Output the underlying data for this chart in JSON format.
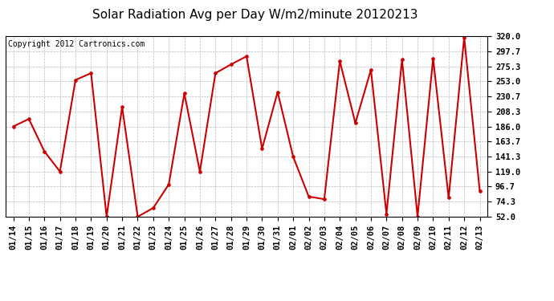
{
  "title": "Solar Radiation Avg per Day W/m2/minute 20120213",
  "copyright": "Copyright 2012 Cartronics.com",
  "dates": [
    "01/14",
    "01/15",
    "01/16",
    "01/17",
    "01/18",
    "01/19",
    "01/20",
    "01/21",
    "01/22",
    "01/23",
    "01/24",
    "01/25",
    "01/26",
    "01/27",
    "01/28",
    "01/29",
    "01/30",
    "01/31",
    "02/01",
    "02/02",
    "02/03",
    "02/04",
    "02/05",
    "02/06",
    "02/07",
    "02/08",
    "02/09",
    "02/10",
    "02/11",
    "02/12",
    "02/13"
  ],
  "values": [
    186,
    197,
    149,
    119,
    255,
    265,
    52,
    215,
    52,
    65,
    100,
    235,
    119,
    265,
    278,
    290,
    153,
    237,
    141,
    82,
    78,
    283,
    191,
    270,
    56,
    285,
    52,
    287,
    80,
    318,
    90
  ],
  "line_color": "#cc0000",
  "marker_color": "#cc0000",
  "bg_color": "#ffffff",
  "plot_bg_color": "#ffffff",
  "grid_color": "#aaaaaa",
  "ylim": [
    52.0,
    320.0
  ],
  "yticks": [
    52.0,
    74.3,
    96.7,
    119.0,
    141.3,
    163.7,
    186.0,
    208.3,
    230.7,
    253.0,
    275.3,
    297.7,
    320.0
  ],
  "ytick_labels": [
    "52.0",
    "74.3",
    "96.7",
    "119.0",
    "141.3",
    "163.7",
    "186.0",
    "208.3",
    "230.7",
    "253.0",
    "275.3",
    "297.7",
    "320.0"
  ],
  "title_fontsize": 11,
  "copyright_fontsize": 7,
  "tick_fontsize": 7.5
}
